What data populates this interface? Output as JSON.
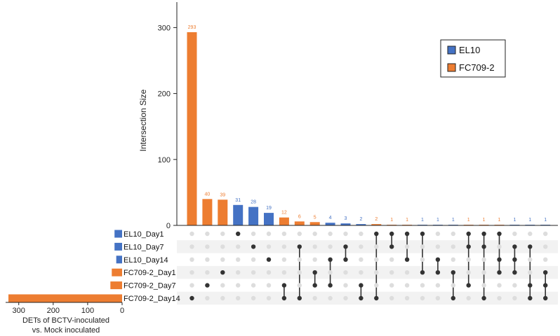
{
  "colors": {
    "el10": "#4472c4",
    "fc709": "#ed7d31",
    "dot_on": "#333333",
    "dot_off": "#dddddd",
    "band": "#f2f2f2",
    "axis": "#222222"
  },
  "chart_data": [
    {
      "type": "bar",
      "name": "intersection-size",
      "ylabel": "Intersection Size",
      "ylim": [
        0,
        330
      ],
      "yticks": [
        0,
        100,
        200,
        300
      ],
      "values": [
        293,
        40,
        39,
        31,
        28,
        19,
        12,
        6,
        5,
        4,
        3,
        2,
        2,
        1,
        1,
        1,
        1,
        1,
        1,
        1,
        1,
        1,
        1,
        1
      ],
      "value_labels": [
        "293",
        "40",
        "39",
        "31",
        "28",
        "19",
        "12",
        "6",
        "5",
        "4",
        "3",
        "2",
        "2",
        "1",
        "1",
        "1",
        "1",
        "1",
        "1",
        "1",
        "1",
        "1",
        "1",
        "1"
      ],
      "group": [
        "FC709-2",
        "FC709-2",
        "FC709-2",
        "EL10",
        "EL10",
        "EL10",
        "FC709-2",
        "FC709-2",
        "FC709-2",
        "EL10",
        "EL10",
        "EL10",
        "FC709-2",
        "FC709-2",
        "FC709-2",
        "EL10",
        "EL10",
        "EL10",
        "FC709-2",
        "FC709-2",
        "FC709-2",
        "EL10",
        "EL10",
        "EL10"
      ],
      "legend": [
        {
          "label": "EL10",
          "group": "EL10"
        },
        {
          "label": "FC709-2",
          "group": "FC709-2"
        }
      ]
    },
    {
      "type": "bar",
      "name": "set-size",
      "orientation": "horizontal-reversed",
      "xlabel": "DETs of BCTV-inoculated\nvs. Mock inoculated",
      "xlabel_lines": [
        "DETs of BCTV-inoculated",
        "vs. Mock inoculated"
      ],
      "xlim": [
        0,
        330
      ],
      "xticks": [
        300,
        200,
        100,
        0
      ],
      "sets": [
        "EL10_Day1",
        "EL10_Day7",
        "EL10_Day14",
        "FC709-2_Day1",
        "FC709-2_Day7",
        "FC709-2_Day14"
      ],
      "values": [
        22,
        22,
        17,
        30,
        34,
        330
      ],
      "group": [
        "EL10",
        "EL10",
        "EL10",
        "FC709-2",
        "FC709-2",
        "FC709-2"
      ]
    },
    {
      "type": "matrix",
      "name": "intersection-matrix",
      "rows": [
        "EL10_Day1",
        "EL10_Day7",
        "EL10_Day14",
        "FC709-2_Day1",
        "FC709-2_Day7",
        "FC709-2_Day14"
      ],
      "columns": [
        [
          5
        ],
        [
          4
        ],
        [
          3
        ],
        [
          0
        ],
        [
          1
        ],
        [
          2
        ],
        [
          4,
          5
        ],
        [
          1,
          5
        ],
        [
          3,
          4
        ],
        [
          2,
          4
        ],
        [
          1,
          2
        ],
        [
          4,
          5
        ],
        [
          0,
          5
        ],
        [
          0,
          1
        ],
        [
          0,
          2
        ],
        [
          0,
          3
        ],
        [
          2,
          3
        ],
        [
          3,
          5
        ],
        [
          0,
          1,
          4
        ],
        [
          0,
          1,
          5
        ],
        [
          0,
          2,
          3
        ],
        [
          1,
          2,
          3
        ],
        [
          1,
          4,
          5
        ],
        [
          3,
          4,
          5
        ]
      ]
    }
  ]
}
